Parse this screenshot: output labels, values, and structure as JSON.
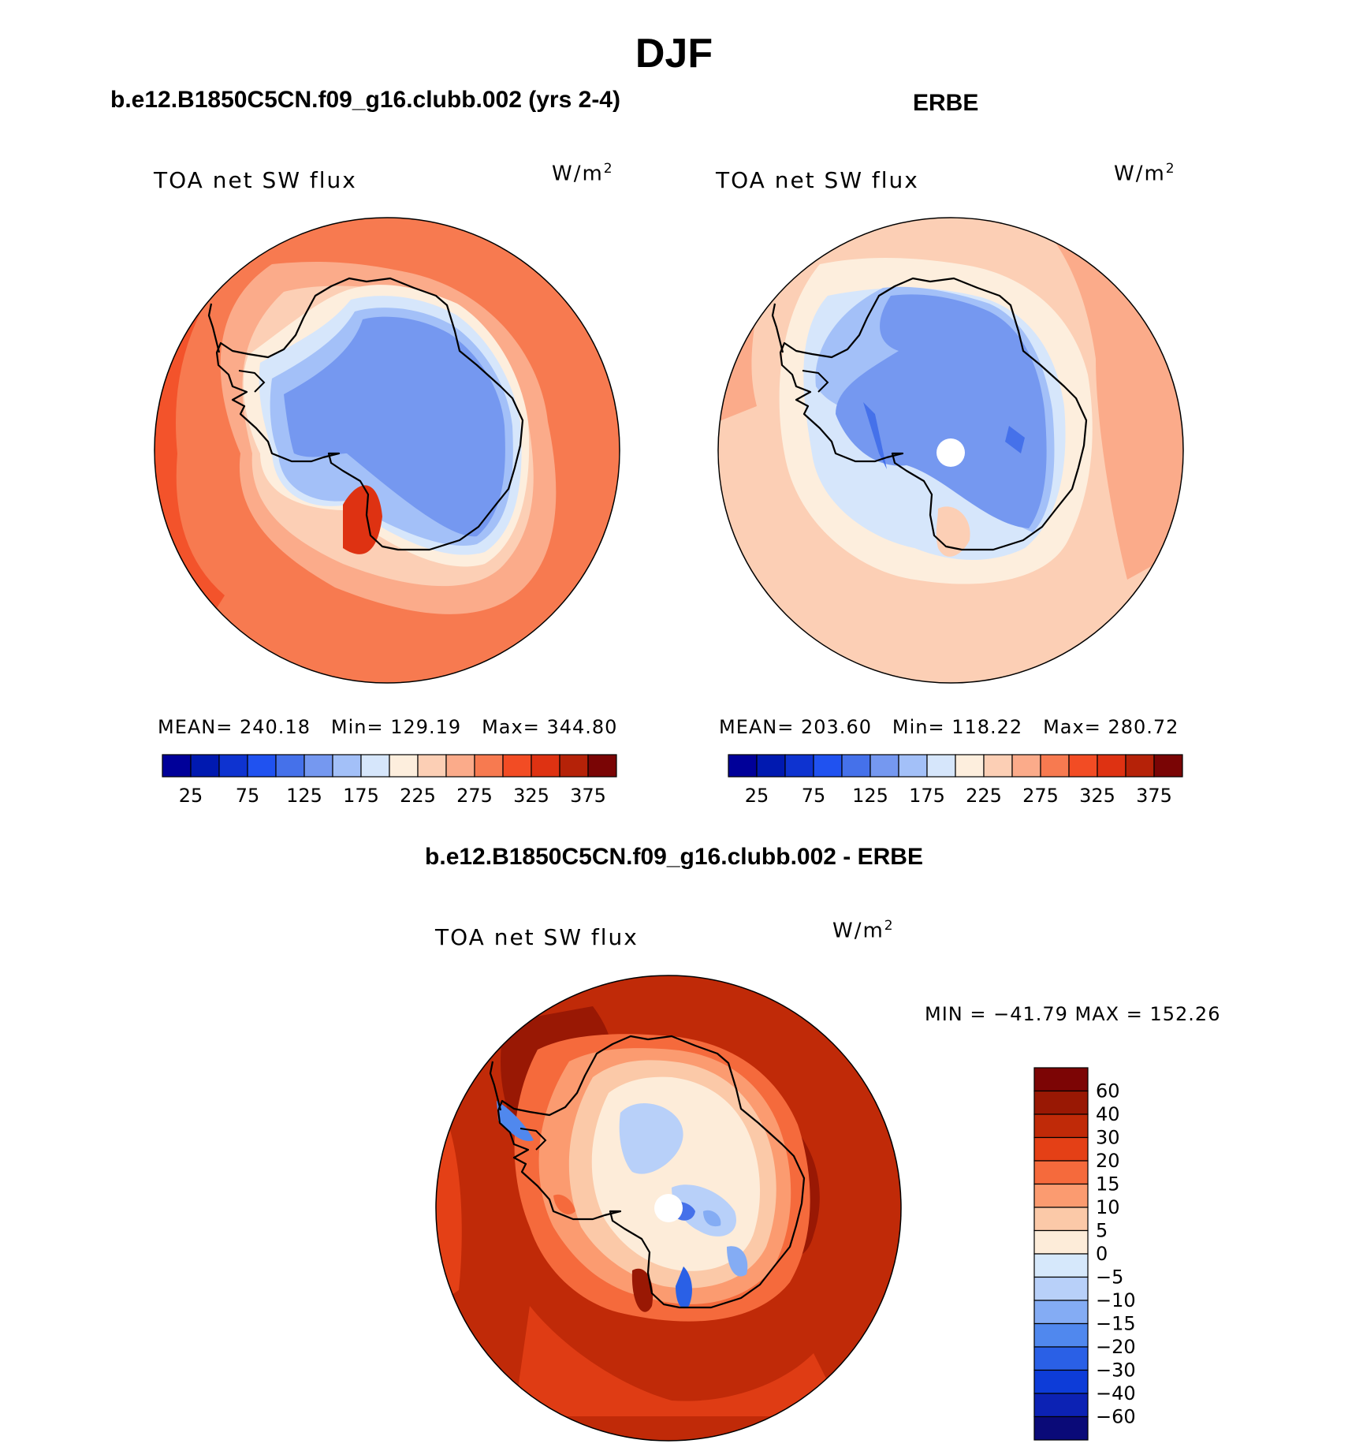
{
  "title": "DJF",
  "panels": [
    {
      "id": "model",
      "title": "b.e12.B1850C5CN.f09_g16.clubb.002 (yrs 2-4)",
      "variable": "TOA net SW flux",
      "units": "W/m",
      "units_sup": "2",
      "stats": {
        "mean_label": "MEAN=",
        "mean": "240.18",
        "min_label": "Min=",
        "min": "129.19",
        "max_label": "Max=",
        "max": "344.80"
      }
    },
    {
      "id": "obs",
      "title": "ERBE",
      "variable": "TOA net SW flux",
      "units": "W/m",
      "units_sup": "2",
      "stats": {
        "mean_label": "MEAN=",
        "mean": "203.60",
        "min_label": "Min=",
        "min": "118.22",
        "max_label": "Max=",
        "max": "280.72"
      }
    },
    {
      "id": "diff",
      "title": "b.e12.B1850C5CN.f09_g16.clubb.002 - ERBE",
      "variable": "TOA net SW flux",
      "units": "W/m",
      "units_sup": "2",
      "minmax": "MIN = −41.79 MAX = 152.26"
    }
  ],
  "colors": {
    "abs_scale": [
      "#000099",
      "#0019b0",
      "#0e33d0",
      "#2052f0",
      "#4571ea",
      "#7598f0",
      "#a3c0f8",
      "#d6e6fb",
      "#fdeedd",
      "#fccfb5",
      "#fbab8a",
      "#f77a50",
      "#f24c24",
      "#de3212",
      "#b52208",
      "#7a0505"
    ],
    "diff_scale": [
      "#0a0a78",
      "#0c22b4",
      "#0d3cd8",
      "#2a60e6",
      "#5088ee",
      "#84acf4",
      "#b8d0f9",
      "#d6e8fb",
      "#fdecd9",
      "#fbc9a8",
      "#fb9b70",
      "#f56a3c",
      "#e44016",
      "#c02a08",
      "#991804",
      "#7c0505"
    ]
  },
  "chart_data": [
    {
      "type": "heatmap",
      "projection": "south polar stereographic",
      "panel": "model",
      "title": "b.e12.B1850C5CN.f09_g16.clubb.002 (yrs 2-4)",
      "variable": "TOA net SW flux",
      "units": "W/m2",
      "mean": 240.18,
      "min": 129.19,
      "max": 344.8,
      "colorbar_levels": [
        25,
        50,
        75,
        100,
        125,
        150,
        175,
        200,
        225,
        250,
        275,
        300,
        325,
        350,
        375
      ],
      "colorbar_tick_labels": [
        "25",
        "75",
        "125",
        "175",
        "225",
        "275",
        "325",
        "375"
      ]
    },
    {
      "type": "heatmap",
      "projection": "south polar stereographic",
      "panel": "obs",
      "title": "ERBE",
      "variable": "TOA net SW flux",
      "units": "W/m2",
      "mean": 203.6,
      "min": 118.22,
      "max": 280.72,
      "colorbar_levels": [
        25,
        50,
        75,
        100,
        125,
        150,
        175,
        200,
        225,
        250,
        275,
        300,
        325,
        350,
        375
      ],
      "colorbar_tick_labels": [
        "25",
        "75",
        "125",
        "175",
        "225",
        "275",
        "325",
        "375"
      ]
    },
    {
      "type": "heatmap",
      "projection": "south polar stereographic",
      "panel": "diff",
      "title": "b.e12.B1850C5CN.f09_g16.clubb.002 - ERBE",
      "variable": "TOA net SW flux",
      "units": "W/m2",
      "min": -41.79,
      "max": 152.26,
      "colorbar_levels": [
        60,
        40,
        30,
        20,
        15,
        10,
        5,
        0,
        -5,
        -10,
        -15,
        -20,
        -30,
        -40,
        -60
      ],
      "colorbar_tick_labels": [
        "60",
        "40",
        "30",
        "20",
        "15",
        "10",
        "5",
        "0",
        "−5",
        "−10",
        "−15",
        "−20",
        "−30",
        "−40",
        "−60"
      ]
    }
  ]
}
